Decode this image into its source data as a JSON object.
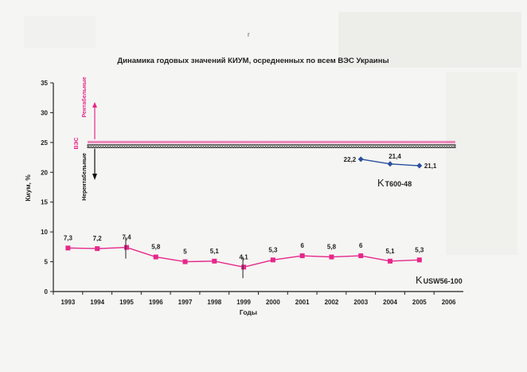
{
  "page_marks": {
    "corner_mark": "r"
  },
  "chart_data": {
    "type": "line",
    "title": "Динамика годовых значений КИУМ, осредненных по всем ВЭС Украины",
    "xlabel": "Годы",
    "ylabel": "Киум, %",
    "categories": [
      "1993",
      "1994",
      "1995",
      "1996",
      "1997",
      "1998",
      "1999",
      "2000",
      "2001",
      "2002",
      "2003",
      "2004",
      "2005",
      "2006"
    ],
    "yticks": [
      "0",
      "5",
      "10",
      "15",
      "20",
      "25",
      "30",
      "35"
    ],
    "ylim": [
      0,
      35
    ],
    "grid": false,
    "series": [
      {
        "name": "USW56-100",
        "color": "#e6278a",
        "marker": "square",
        "x": [
          "1993",
          "1994",
          "1995",
          "1996",
          "1997",
          "1998",
          "1999",
          "2000",
          "2001",
          "2002",
          "2003",
          "2004",
          "2005"
        ],
        "values": [
          7.3,
          7.2,
          7.4,
          5.8,
          5,
          5.1,
          4.1,
          5.3,
          6,
          5.8,
          6,
          5.1,
          5.3
        ],
        "labels": [
          "7,3",
          "7,2",
          "7,4",
          "5,8",
          "5",
          "5,1",
          "4,1",
          "5,3",
          "6",
          "5,8",
          "6",
          "5,1",
          "5,3"
        ]
      },
      {
        "name": "T600-48",
        "color": "#2a4f9e",
        "marker": "diamond",
        "x": [
          "2003",
          "2004",
          "2005"
        ],
        "values": [
          22.2,
          21.4,
          21.1
        ],
        "labels": [
          "22,2",
          "21,4",
          "21,1"
        ]
      }
    ],
    "series_label_prefix": "K",
    "threshold_band": {
      "lower": 24.5,
      "upper": 25.0
    },
    "annotations": {
      "profitable": "Рентабельные",
      "plants": "ВЭС",
      "unprofitable": "Нерентабельные"
    },
    "colors": {
      "pink": "#e6278a",
      "blue": "#2a4f9e",
      "band_dark": "#333333"
    }
  }
}
